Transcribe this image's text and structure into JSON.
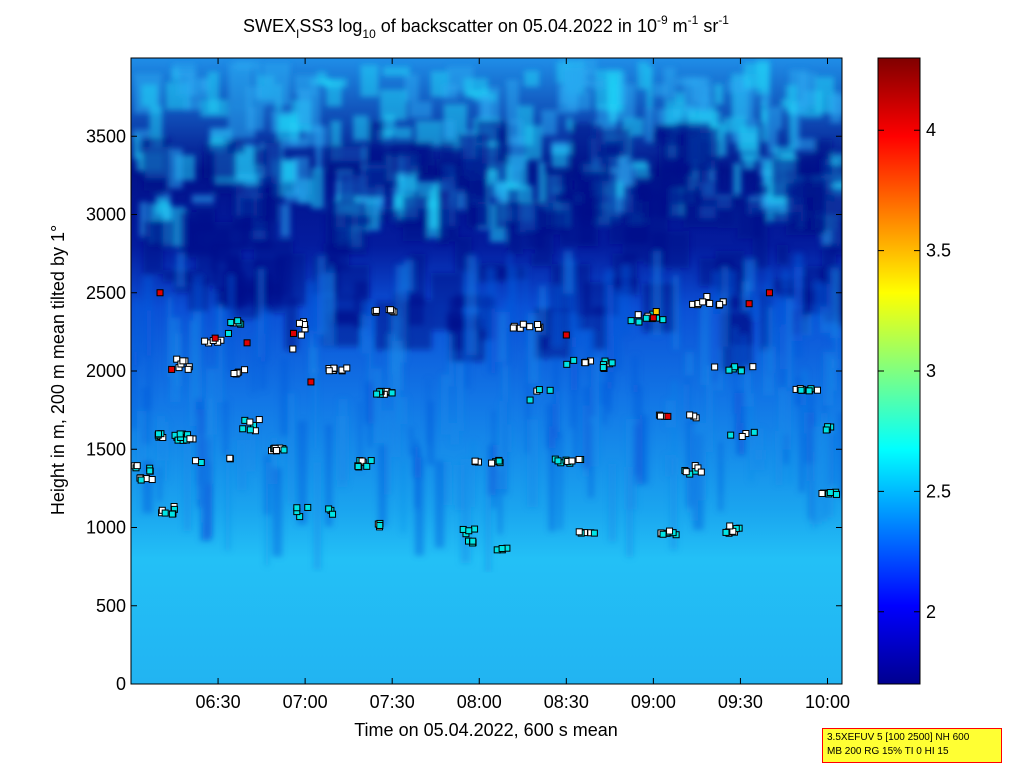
{
  "chart_data": {
    "type": "heatmap",
    "title": {
      "prefix": "SWEX",
      "prefix_sub": "I",
      "main": "SS3 log",
      "log_sub": "10",
      "rest": " of backscatter on 05.04.2022 in 10",
      "exp1": "-9",
      "unit1": " m",
      "exp2": "-1",
      "unit2": " sr",
      "exp3": "-1"
    },
    "xlabel": "Time on 05.04.2022, 600 s mean",
    "ylabel": "Height in m, 200 m mean tilted by 1°",
    "x_ticks": [
      "06:30",
      "07:00",
      "07:30",
      "08:00",
      "08:30",
      "09:00",
      "09:30",
      "10:00"
    ],
    "x_tick_minutes": [
      390,
      420,
      450,
      480,
      510,
      540,
      570,
      600
    ],
    "xlim_minutes": [
      360,
      605
    ],
    "y_ticks": [
      "0",
      "500",
      "1000",
      "1500",
      "2000",
      "2500",
      "3000",
      "3500"
    ],
    "y_tick_values": [
      0,
      500,
      1000,
      1500,
      2000,
      2500,
      3000,
      3500
    ],
    "ylim": [
      0,
      4000
    ],
    "colorbar": {
      "ticks": [
        "2",
        "2.5",
        "3",
        "3.5",
        "4"
      ],
      "tick_values": [
        2,
        2.5,
        3,
        3.5,
        4
      ],
      "range": [
        1.7,
        4.3
      ],
      "colormap": "jet"
    },
    "grid": false,
    "cloud_base_marker_color": "#000000",
    "info_lines": [
      "3.5XEFUV 5 [100 2500] NH 600",
      "MB 200 RG 15% TI 0 HI 15"
    ]
  }
}
